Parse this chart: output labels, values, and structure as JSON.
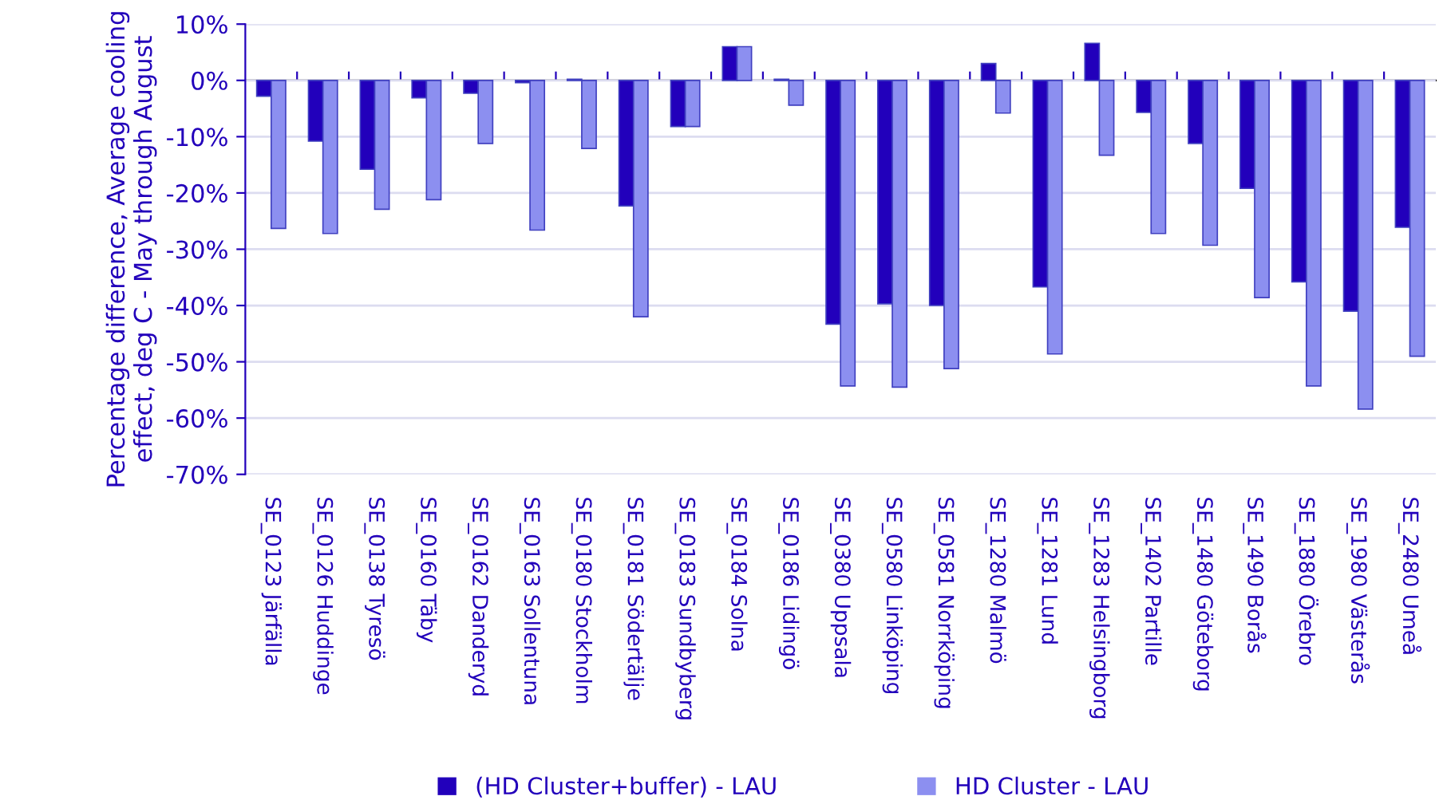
{
  "chart_data": {
    "type": "bar",
    "ylabel": "Percentage difference, Average cooling effect, deg C - May through August",
    "categories": [
      "SE_0123 Järfälla",
      "SE_0126 Huddinge",
      "SE_0138 Tyresö",
      "SE_0160 Täby",
      "SE_0162 Danderyd",
      "SE_0163 Sollentuna",
      "SE_0180 Stockholm",
      "SE_0181 Södertälje",
      "SE_0183 Sundbyberg",
      "SE_0184 Solna",
      "SE_0186 Lidingö",
      "SE_0380 Uppsala",
      "SE_0580 Linköping",
      "SE_0581 Norrköping",
      "SE_1280 Malmö",
      "SE_1281 Lund",
      "SE_1283 Helsingborg",
      "SE_1402 Partille",
      "SE_1480 Göteborg",
      "SE_1490 Borås",
      "SE_1880 Örebro",
      "SE_1980 Västerås",
      "SE_2480 Umeå"
    ],
    "series": [
      {
        "name": "(HD Cluster+buffer) - LAU",
        "color": "#2200bb",
        "values": [
          -2.8,
          -10.8,
          -15.8,
          -3.1,
          -2.3,
          -0.4,
          0.2,
          -22.3,
          -8.2,
          6.0,
          0.2,
          -43.3,
          -39.7,
          -40.0,
          3.0,
          -36.7,
          6.6,
          -5.7,
          -11.2,
          -19.2,
          -35.8,
          -41.0,
          -26.1
        ]
      },
      {
        "name": "HD Cluster - LAU",
        "color": "#8c8ff0",
        "values": [
          -26.3,
          -27.2,
          -22.9,
          -21.2,
          -11.2,
          -26.6,
          -12.1,
          -42.0,
          -8.2,
          6.0,
          -4.4,
          -54.3,
          -54.5,
          -51.2,
          -5.8,
          -48.6,
          -13.3,
          -27.2,
          -29.3,
          -38.6,
          -54.3,
          -58.4,
          -49.0
        ]
      }
    ],
    "ylim": [
      -70,
      10
    ],
    "yticks": [
      {
        "value": 10,
        "label": "10%"
      },
      {
        "value": 0,
        "label": "0%"
      },
      {
        "value": -10,
        "label": "-10%"
      },
      {
        "value": -20,
        "label": "-20%"
      },
      {
        "value": -30,
        "label": "-30%"
      },
      {
        "value": -40,
        "label": "-40%"
      },
      {
        "value": -50,
        "label": "-50%"
      },
      {
        "value": -60,
        "label": "-60%"
      },
      {
        "value": -70,
        "label": "-70%"
      }
    ],
    "grid": "y",
    "legend": "bottom"
  }
}
